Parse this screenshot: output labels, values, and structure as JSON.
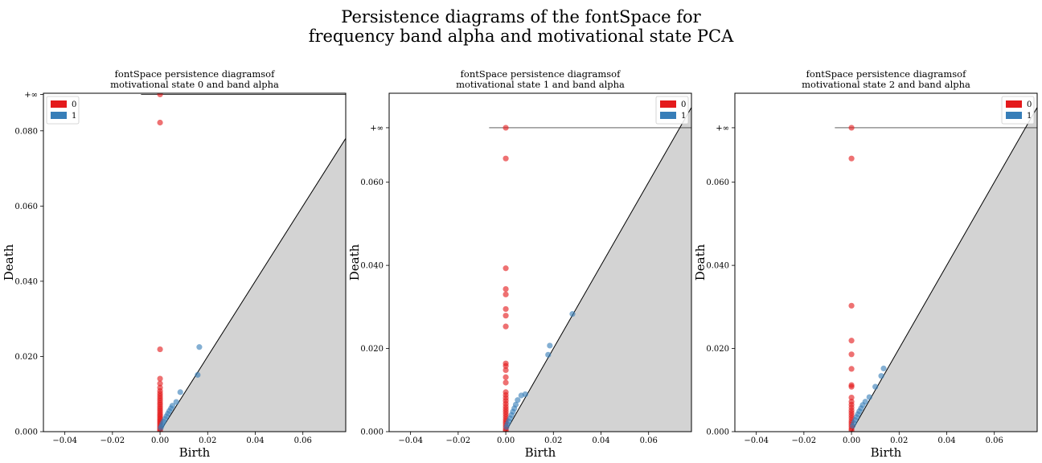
{
  "figure": {
    "title_line1": "Persistence diagrams of the fontSpace for",
    "title_line2": "frequency band alpha and motivational state PCA"
  },
  "chart_data": [
    {
      "type": "scatter",
      "title_line1": "fontSpace persistence diagramsof",
      "title_line2": "motivational state 0 and band alpha",
      "xlabel": "Birth",
      "ylabel": "Death",
      "xlim": [
        -0.049,
        0.078
      ],
      "ylim": [
        0,
        0.09
      ],
      "xticks": [
        -0.04,
        -0.02,
        0.0,
        0.02,
        0.04,
        0.06
      ],
      "xtick_labels": [
        "−0.04",
        "−0.02",
        "0.00",
        "0.02",
        "0.04",
        "0.06"
      ],
      "yticks": [
        0.0,
        0.02,
        0.04,
        0.06,
        0.08
      ],
      "ytick_labels": [
        "0.000",
        "0.020",
        "0.040",
        "0.060",
        "0.080"
      ],
      "inf_label": "+∞",
      "inf_y": 0.0897,
      "inf_line_xstart": -0.008,
      "legend_position": "top-left",
      "diagonal_fill": "#d3d3d3",
      "series": [
        {
          "name": "0",
          "color": "#e41a1c",
          "points": [
            [
              0,
              0.0897
            ],
            [
              0,
              0.0822
            ],
            [
              0,
              0.0219
            ],
            [
              0,
              0.0141
            ],
            [
              0,
              0.0128
            ],
            [
              0,
              0.0117
            ],
            [
              0,
              0.0108
            ],
            [
              0,
              0.0101
            ],
            [
              0,
              0.0095
            ],
            [
              0,
              0.0089
            ],
            [
              0,
              0.0083
            ],
            [
              0,
              0.0077
            ],
            [
              0,
              0.0072
            ],
            [
              0,
              0.0066
            ],
            [
              0,
              0.0061
            ],
            [
              0,
              0.0056
            ],
            [
              0,
              0.0051
            ],
            [
              0,
              0.0046
            ],
            [
              0,
              0.0042
            ],
            [
              0,
              0.0037
            ],
            [
              0,
              0.0033
            ],
            [
              0,
              0.0029
            ],
            [
              0,
              0.0025
            ],
            [
              0,
              0.0021
            ],
            [
              0,
              0.0017
            ],
            [
              0,
              0.0013
            ],
            [
              0,
              0.0009
            ],
            [
              0,
              0.0005
            ],
            [
              0,
              0.0002
            ]
          ]
        },
        {
          "name": "1",
          "color": "#377eb8",
          "points": [
            [
              0.0165,
              0.0225
            ],
            [
              0.0158,
              0.0151
            ],
            [
              0.0085,
              0.0105
            ],
            [
              0.0068,
              0.0079
            ],
            [
              0.0052,
              0.0069
            ],
            [
              0.0046,
              0.0062
            ],
            [
              0.0039,
              0.0055
            ],
            [
              0.0033,
              0.0048
            ],
            [
              0.0027,
              0.0041
            ],
            [
              0.0021,
              0.0034
            ],
            [
              0.0015,
              0.0027
            ],
            [
              0.001,
              0.0021
            ],
            [
              0.0006,
              0.0015
            ],
            [
              0.0003,
              0.001
            ]
          ]
        }
      ]
    },
    {
      "type": "scatter",
      "title_line1": "fontSpace persistence diagramsof",
      "title_line2": "motivational state 1 and band alpha",
      "xlabel": "Birth",
      "ylabel": "Death",
      "xlim": [
        -0.049,
        0.078
      ],
      "ylim": [
        0,
        0.0814
      ],
      "xticks": [
        -0.04,
        -0.02,
        0.0,
        0.02,
        0.04,
        0.06
      ],
      "xtick_labels": [
        "−0.04",
        "−0.02",
        "0.00",
        "0.02",
        "0.04",
        "0.06"
      ],
      "yticks": [
        0.0,
        0.02,
        0.04,
        0.06
      ],
      "ytick_labels": [
        "0.000",
        "0.020",
        "0.040",
        "0.060"
      ],
      "inf_label": "+∞",
      "inf_y": 0.0731,
      "inf_line_xstart": -0.007,
      "legend_position": "top-right",
      "diagonal_fill": "#d3d3d3",
      "series": [
        {
          "name": "0",
          "color": "#e41a1c",
          "points": [
            [
              0,
              0.0731
            ],
            [
              0,
              0.0657
            ],
            [
              0,
              0.0393
            ],
            [
              0,
              0.0343
            ],
            [
              0,
              0.033
            ],
            [
              0,
              0.0295
            ],
            [
              0,
              0.0279
            ],
            [
              0,
              0.0253
            ],
            [
              0,
              0.0164
            ],
            [
              0,
              0.0158
            ],
            [
              0,
              0.0148
            ],
            [
              0,
              0.0131
            ],
            [
              0,
              0.0118
            ],
            [
              0,
              0.0095
            ],
            [
              0,
              0.0088
            ],
            [
              0,
              0.0081
            ],
            [
              0,
              0.0074
            ],
            [
              0,
              0.0067
            ],
            [
              0,
              0.006
            ],
            [
              0,
              0.0054
            ],
            [
              0,
              0.0048
            ],
            [
              0,
              0.0042
            ],
            [
              0,
              0.0036
            ],
            [
              0,
              0.003
            ],
            [
              0,
              0.0025
            ],
            [
              0,
              0.002
            ],
            [
              0,
              0.0015
            ],
            [
              0,
              0.001
            ],
            [
              0,
              0.0005
            ],
            [
              0,
              0.0002
            ]
          ]
        },
        {
          "name": "1",
          "color": "#377eb8",
          "points": [
            [
              0.028,
              0.0283
            ],
            [
              0.0185,
              0.0207
            ],
            [
              0.0178,
              0.0185
            ],
            [
              0.0082,
              0.009
            ],
            [
              0.0065,
              0.0087
            ],
            [
              0.005,
              0.0076
            ],
            [
              0.0042,
              0.0065
            ],
            [
              0.0036,
              0.0056
            ],
            [
              0.003,
              0.0048
            ],
            [
              0.0024,
              0.004
            ],
            [
              0.0018,
              0.0032
            ],
            [
              0.0012,
              0.0025
            ],
            [
              0.0007,
              0.0018
            ],
            [
              0.0003,
              0.0011
            ]
          ]
        }
      ]
    },
    {
      "type": "scatter",
      "title_line1": "fontSpace persistence diagramsof",
      "title_line2": "motivational state 2 and band alpha",
      "xlabel": "Birth",
      "ylabel": "Death",
      "xlim": [
        -0.049,
        0.078
      ],
      "ylim": [
        0,
        0.0814
      ],
      "xticks": [
        -0.04,
        -0.02,
        0.0,
        0.02,
        0.04,
        0.06
      ],
      "xtick_labels": [
        "−0.04",
        "−0.02",
        "0.00",
        "0.02",
        "0.04",
        "0.06"
      ],
      "yticks": [
        0.0,
        0.02,
        0.04,
        0.06
      ],
      "ytick_labels": [
        "0.000",
        "0.020",
        "0.040",
        "0.060"
      ],
      "inf_label": "+∞",
      "inf_y": 0.0731,
      "inf_line_xstart": -0.007,
      "legend_position": "top-right",
      "diagonal_fill": "#d3d3d3",
      "series": [
        {
          "name": "0",
          "color": "#e41a1c",
          "points": [
            [
              0,
              0.0731
            ],
            [
              0,
              0.0657
            ],
            [
              0,
              0.0303
            ],
            [
              0,
              0.0219
            ],
            [
              0,
              0.0186
            ],
            [
              0,
              0.0151
            ],
            [
              0,
              0.0112
            ],
            [
              0,
              0.0108
            ],
            [
              0,
              0.0082
            ],
            [
              0,
              0.0072
            ],
            [
              0,
              0.0065
            ],
            [
              0,
              0.0058
            ],
            [
              0,
              0.0051
            ],
            [
              0,
              0.0045
            ],
            [
              0,
              0.0039
            ],
            [
              0,
              0.0033
            ],
            [
              0,
              0.0027
            ],
            [
              0,
              0.0022
            ],
            [
              0,
              0.0017
            ],
            [
              0,
              0.0012
            ],
            [
              0,
              0.0007
            ],
            [
              0,
              0.0003
            ]
          ]
        },
        {
          "name": "1",
          "color": "#377eb8",
          "points": [
            [
              0.0135,
              0.0152
            ],
            [
              0.0125,
              0.0134
            ],
            [
              0.01,
              0.0108
            ],
            [
              0.0075,
              0.0083
            ],
            [
              0.0058,
              0.0072
            ],
            [
              0.0047,
              0.0064
            ],
            [
              0.004,
              0.0056
            ],
            [
              0.0033,
              0.0049
            ],
            [
              0.0027,
              0.0042
            ],
            [
              0.0021,
              0.0035
            ],
            [
              0.0015,
              0.0028
            ],
            [
              0.001,
              0.0021
            ],
            [
              0.0005,
              0.0014
            ]
          ]
        }
      ]
    }
  ]
}
